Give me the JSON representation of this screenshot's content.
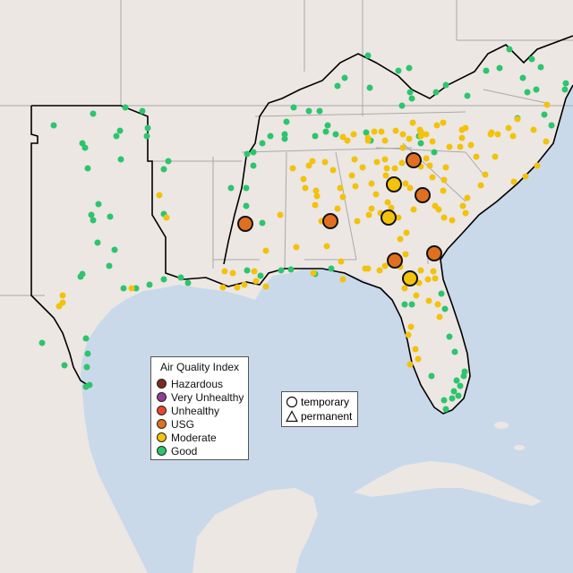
{
  "legend": {
    "title": "Air Quality Index",
    "categories": [
      {
        "label": "Hazardous",
        "color": "#7e2a24"
      },
      {
        "label": "Very Unhealthy",
        "color": "#8f3f97"
      },
      {
        "label": "Unhealthy",
        "color": "#e8462f"
      },
      {
        "label": "USG",
        "color": "#e07020"
      },
      {
        "label": "Moderate",
        "color": "#f2c20d"
      },
      {
        "label": "Good",
        "color": "#2ec46e"
      }
    ]
  },
  "shape_legend": {
    "temporary": "temporary",
    "permanent": "permanent"
  },
  "colors": {
    "ocean": "#c9d9ea",
    "land": "#ece7e3",
    "highlighted_land": "#efe9e6",
    "state_border": "#a9a9a9",
    "region_outline": "#000000"
  }
}
